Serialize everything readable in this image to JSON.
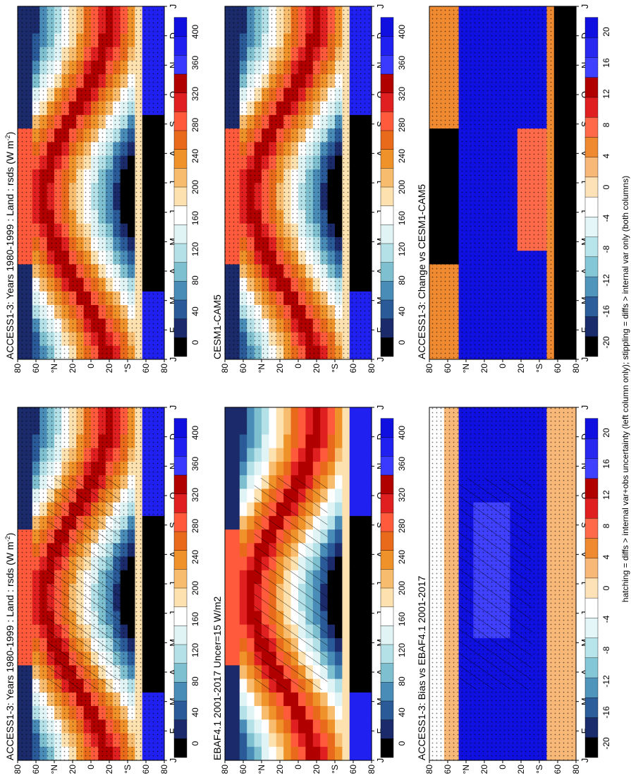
{
  "footnote": "hatching = diffs > internal var+obs uncertainty (left column only); stippling = diffs > internal var only (both columns)",
  "months": [
    "J",
    "F",
    "M",
    "A",
    "M",
    "J",
    "J",
    "A",
    "S",
    "O",
    "N",
    "D",
    "J"
  ],
  "lat_ticks": [
    "80",
    "60",
    "°N",
    "20",
    "0",
    "20",
    "°S",
    "60",
    "80"
  ],
  "colorbar_field": [
    "400",
    "360",
    "320",
    "280",
    "240",
    "200",
    "160",
    "120",
    "80",
    "40",
    "0"
  ],
  "colorbar_diff": [
    "20",
    "16",
    "12",
    "8",
    "4",
    "0",
    "-4",
    "-8",
    "-12",
    "-16",
    "-20"
  ],
  "palette_field": [
    "#1010e0",
    "#2020f0",
    "#3a3aff",
    "#b00000",
    "#e02020",
    "#ff5a3c",
    "#e86a1a",
    "#f0922a",
    "#f8bc6e",
    "#fde2b0",
    "#ffffff",
    "#e0f4f6",
    "#b4e0e8",
    "#7ec0d0",
    "#4a8cb8",
    "#2a5a98",
    "#1a2a6a",
    "#000000"
  ],
  "palette_diff": [
    "#1010e0",
    "#2828f0",
    "#4040ff",
    "#b00000",
    "#e02020",
    "#ff6a4a",
    "#f08a30",
    "#f8b878",
    "#fde2b8",
    "#ffffff",
    "#e4f6f8",
    "#b8e4ec",
    "#84c8d8",
    "#5096bc",
    "#2c5e9c",
    "#1a2c6c",
    "#000000"
  ],
  "chart_data": [
    {
      "type": "heatmap",
      "title": "ACCESS1-3: Years 1980-1999 : Land : rsds (W m",
      "title_sup": "-2",
      "title_end": ")",
      "column": "left",
      "row": 1,
      "hatching": true,
      "stippling": true,
      "ylabel": "",
      "xlabel": "",
      "colorbar": "field"
    },
    {
      "type": "heatmap",
      "title": "EBAF4.1 2001-2017 Uncer=15 W/m2",
      "column": "left",
      "row": 2,
      "hatching": true,
      "stippling": false,
      "colorbar": "field"
    },
    {
      "type": "heatmap",
      "title": "ACCESS1-3: Bias vs EBAF4.1 2001-2017",
      "column": "left",
      "row": 3,
      "hatching": true,
      "stippling": true,
      "colorbar": "diff"
    },
    {
      "type": "heatmap",
      "title": "ACCESS1-3: Years 1980-1999 : Land : rsds (W m",
      "title_sup": "-2",
      "title_end": ")",
      "column": "right",
      "row": 1,
      "hatching": false,
      "stippling": true,
      "colorbar": "field"
    },
    {
      "type": "heatmap",
      "title": "CESM1-CAM5",
      "column": "right",
      "row": 2,
      "hatching": false,
      "stippling": true,
      "colorbar": "field"
    },
    {
      "type": "heatmap",
      "title": "ACCESS1-3: Change vs CESM1-CAM5",
      "column": "right",
      "row": 3,
      "hatching": false,
      "stippling": true,
      "colorbar": "diff"
    }
  ]
}
